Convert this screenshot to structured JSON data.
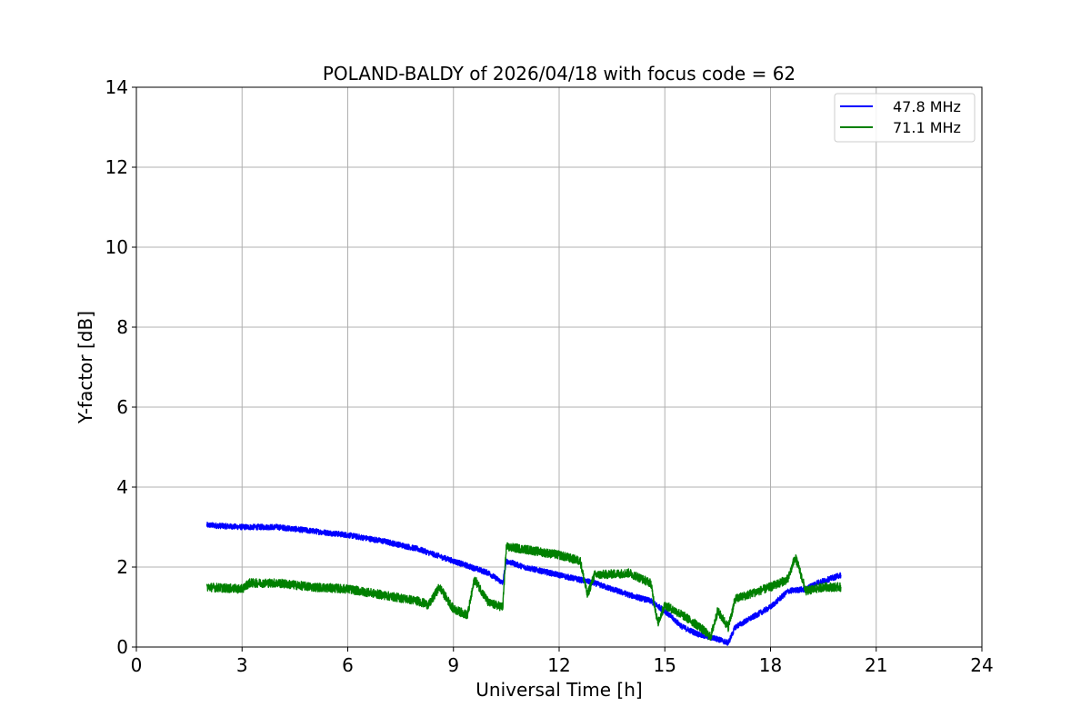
{
  "chart_data": {
    "type": "line",
    "title": "POLAND-BALDY of 2026/04/18 with focus code = 62",
    "xlabel": "Universal Time [h]",
    "ylabel": "Y-factor [dB]",
    "xlim": [
      0,
      24
    ],
    "ylim": [
      0,
      14
    ],
    "xticks": [
      0,
      3,
      6,
      9,
      12,
      15,
      18,
      21,
      24
    ],
    "yticks": [
      0,
      2,
      4,
      6,
      8,
      10,
      12,
      14
    ],
    "grid": true,
    "legend_position": "top-right",
    "series": [
      {
        "name": "47.8 MHz",
        "color": "#0000ff",
        "x": [
          2.0,
          3.0,
          4.0,
          5.0,
          6.0,
          7.0,
          8.0,
          9.0,
          9.5,
          10.0,
          10.4,
          10.5,
          11.0,
          12.0,
          13.0,
          14.0,
          14.6,
          15.0,
          15.5,
          16.0,
          16.5,
          16.8,
          17.0,
          17.5,
          18.0,
          18.5,
          19.0,
          19.3,
          19.5,
          20.0
        ],
        "y": [
          3.05,
          3.0,
          3.0,
          2.9,
          2.8,
          2.65,
          2.45,
          2.15,
          2.0,
          1.85,
          1.6,
          2.15,
          2.0,
          1.8,
          1.6,
          1.3,
          1.15,
          0.9,
          0.5,
          0.3,
          0.2,
          0.1,
          0.5,
          0.75,
          1.0,
          1.4,
          1.45,
          1.6,
          1.65,
          1.8
        ]
      },
      {
        "name": "71.1 MHz",
        "color": "#008000",
        "x": [
          2.0,
          3.0,
          3.2,
          4.0,
          5.0,
          6.0,
          7.0,
          8.0,
          8.3,
          8.6,
          9.0,
          9.4,
          9.6,
          10.0,
          10.4,
          10.5,
          11.0,
          12.0,
          12.6,
          12.8,
          13.0,
          14.0,
          14.6,
          14.8,
          15.0,
          15.5,
          16.0,
          16.3,
          16.5,
          16.8,
          17.0,
          17.5,
          18.0,
          18.5,
          18.7,
          18.8,
          19.0,
          19.5,
          20.0
        ],
        "y": [
          1.5,
          1.45,
          1.6,
          1.6,
          1.5,
          1.45,
          1.3,
          1.15,
          1.05,
          1.5,
          0.95,
          0.8,
          1.7,
          1.1,
          1.0,
          2.5,
          2.45,
          2.3,
          2.15,
          1.3,
          1.8,
          1.85,
          1.6,
          0.6,
          1.05,
          0.8,
          0.5,
          0.25,
          0.9,
          0.5,
          1.2,
          1.35,
          1.5,
          1.7,
          2.25,
          2.0,
          1.4,
          1.5,
          1.5
        ]
      }
    ]
  }
}
